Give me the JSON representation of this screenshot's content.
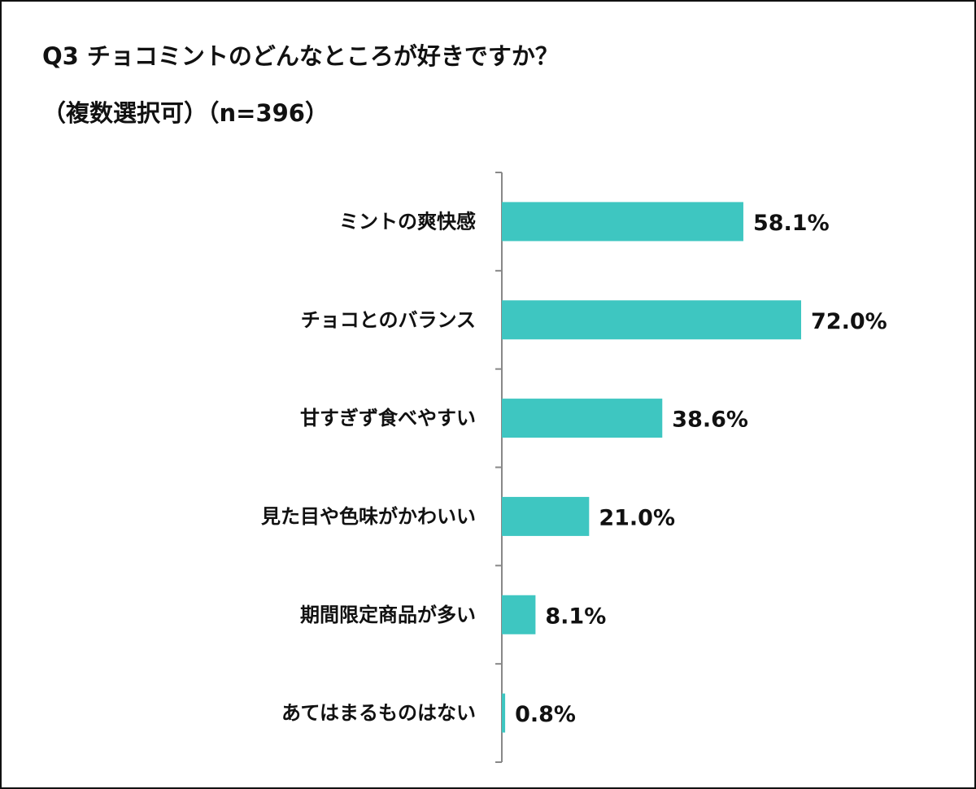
{
  "chart_data": {
    "type": "bar",
    "orientation": "horizontal",
    "title": "Q3 チョコミントのどんなところが好きですか？",
    "subtitle": "（複数選択可）（n=396）",
    "categories": [
      "ミントの爽快感",
      "チョコとのバランス",
      "甘すぎず食べやすい",
      "見た目や色味がかわいい",
      "期間限定商品が多い",
      "あてはまるものはない"
    ],
    "values": [
      58.1,
      72.0,
      38.6,
      21.0,
      8.1,
      0.8
    ],
    "value_labels": [
      "58.1%",
      "72.0%",
      "38.6%",
      "21.0%",
      "8.1%",
      "0.8%"
    ],
    "unit": "%",
    "xlim": [
      0,
      100
    ],
    "grid": false,
    "legend": "none",
    "colors": {
      "bar": "#3ec6c1",
      "axis": "#888888",
      "text": "#111111",
      "border": "#111111"
    }
  }
}
